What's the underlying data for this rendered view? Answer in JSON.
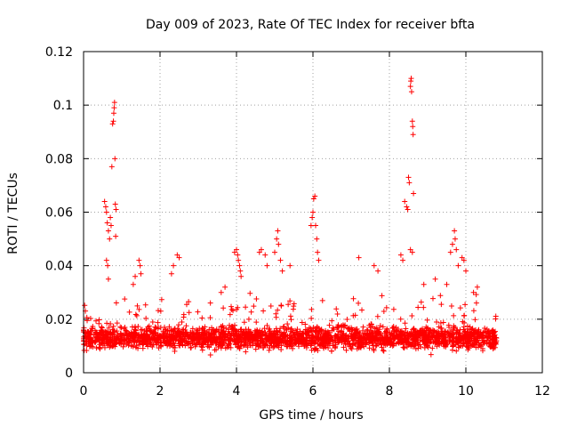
{
  "chart_data": {
    "type": "scatter",
    "title": "Day 009 of 2023, Rate Of TEC Index for receiver bfta",
    "xlabel": "GPS time / hours",
    "ylabel": "ROTI / TECUs",
    "xlim": [
      0,
      12
    ],
    "ylim": [
      0,
      0.12
    ],
    "xticks": [
      0,
      2,
      4,
      6,
      8,
      10,
      12
    ],
    "yticks": [
      0,
      0.02,
      0.04,
      0.06,
      0.08,
      0.1,
      0.12
    ],
    "xtick_labels": [
      "0",
      "2",
      "4",
      "6",
      "8",
      "10",
      "12"
    ],
    "ytick_labels": [
      "0",
      "0.02",
      "0.04",
      "0.06",
      "0.08",
      "0.1",
      "0.12"
    ],
    "grid": true,
    "marker": "+",
    "series_color": "#ff0000",
    "series": [
      {
        "name": "ROTI",
        "background": {
          "x_start": 0.0,
          "x_end": 10.8,
          "samples": 2600,
          "baseline": 0.013,
          "spread": 0.007,
          "floor": 0.004
        },
        "points": [
          {
            "x": 0.55,
            "y": 0.064
          },
          {
            "x": 0.58,
            "y": 0.062
          },
          {
            "x": 0.6,
            "y": 0.06
          },
          {
            "x": 0.62,
            "y": 0.056
          },
          {
            "x": 0.65,
            "y": 0.053
          },
          {
            "x": 0.68,
            "y": 0.05
          },
          {
            "x": 0.6,
            "y": 0.042
          },
          {
            "x": 0.63,
            "y": 0.04
          },
          {
            "x": 0.65,
            "y": 0.035
          },
          {
            "x": 0.7,
            "y": 0.058
          },
          {
            "x": 0.72,
            "y": 0.055
          },
          {
            "x": 0.74,
            "y": 0.077
          },
          {
            "x": 0.76,
            "y": 0.093
          },
          {
            "x": 0.78,
            "y": 0.094
          },
          {
            "x": 0.79,
            "y": 0.097
          },
          {
            "x": 0.8,
            "y": 0.099
          },
          {
            "x": 0.81,
            "y": 0.101
          },
          {
            "x": 0.82,
            "y": 0.08
          },
          {
            "x": 0.83,
            "y": 0.063
          },
          {
            "x": 0.85,
            "y": 0.061
          },
          {
            "x": 0.84,
            "y": 0.051
          },
          {
            "x": 1.3,
            "y": 0.033
          },
          {
            "x": 1.35,
            "y": 0.036
          },
          {
            "x": 1.45,
            "y": 0.042
          },
          {
            "x": 1.48,
            "y": 0.04
          },
          {
            "x": 1.5,
            "y": 0.037
          },
          {
            "x": 2.3,
            "y": 0.037
          },
          {
            "x": 2.35,
            "y": 0.04
          },
          {
            "x": 2.45,
            "y": 0.044
          },
          {
            "x": 2.5,
            "y": 0.043
          },
          {
            "x": 3.6,
            "y": 0.03
          },
          {
            "x": 3.7,
            "y": 0.032
          },
          {
            "x": 3.95,
            "y": 0.045
          },
          {
            "x": 4.0,
            "y": 0.046
          },
          {
            "x": 4.03,
            "y": 0.044
          },
          {
            "x": 4.05,
            "y": 0.042
          },
          {
            "x": 4.08,
            "y": 0.04
          },
          {
            "x": 4.1,
            "y": 0.038
          },
          {
            "x": 4.12,
            "y": 0.036
          },
          {
            "x": 4.6,
            "y": 0.045
          },
          {
            "x": 4.65,
            "y": 0.046
          },
          {
            "x": 4.75,
            "y": 0.044
          },
          {
            "x": 4.8,
            "y": 0.04
          },
          {
            "x": 5.0,
            "y": 0.045
          },
          {
            "x": 5.05,
            "y": 0.05
          },
          {
            "x": 5.08,
            "y": 0.053
          },
          {
            "x": 5.1,
            "y": 0.048
          },
          {
            "x": 5.15,
            "y": 0.042
          },
          {
            "x": 5.2,
            "y": 0.038
          },
          {
            "x": 5.4,
            "y": 0.04
          },
          {
            "x": 5.95,
            "y": 0.055
          },
          {
            "x": 5.98,
            "y": 0.058
          },
          {
            "x": 6.0,
            "y": 0.06
          },
          {
            "x": 6.02,
            "y": 0.065
          },
          {
            "x": 6.05,
            "y": 0.066
          },
          {
            "x": 6.07,
            "y": 0.055
          },
          {
            "x": 6.1,
            "y": 0.05
          },
          {
            "x": 6.12,
            "y": 0.045
          },
          {
            "x": 6.15,
            "y": 0.042
          },
          {
            "x": 7.2,
            "y": 0.043
          },
          {
            "x": 7.6,
            "y": 0.04
          },
          {
            "x": 7.7,
            "y": 0.038
          },
          {
            "x": 8.3,
            "y": 0.044
          },
          {
            "x": 8.35,
            "y": 0.042
          },
          {
            "x": 8.4,
            "y": 0.064
          },
          {
            "x": 8.45,
            "y": 0.062
          },
          {
            "x": 8.48,
            "y": 0.061
          },
          {
            "x": 8.5,
            "y": 0.073
          },
          {
            "x": 8.52,
            "y": 0.071
          },
          {
            "x": 8.55,
            "y": 0.107
          },
          {
            "x": 8.56,
            "y": 0.109
          },
          {
            "x": 8.57,
            "y": 0.11
          },
          {
            "x": 8.58,
            "y": 0.105
          },
          {
            "x": 8.6,
            "y": 0.094
          },
          {
            "x": 8.61,
            "y": 0.092
          },
          {
            "x": 8.62,
            "y": 0.089
          },
          {
            "x": 8.63,
            "y": 0.067
          },
          {
            "x": 8.55,
            "y": 0.046
          },
          {
            "x": 8.6,
            "y": 0.045
          },
          {
            "x": 8.9,
            "y": 0.033
          },
          {
            "x": 9.2,
            "y": 0.035
          },
          {
            "x": 9.6,
            "y": 0.045
          },
          {
            "x": 9.65,
            "y": 0.048
          },
          {
            "x": 9.7,
            "y": 0.053
          },
          {
            "x": 9.72,
            "y": 0.05
          },
          {
            "x": 9.75,
            "y": 0.046
          },
          {
            "x": 9.8,
            "y": 0.04
          },
          {
            "x": 9.9,
            "y": 0.043
          },
          {
            "x": 9.95,
            "y": 0.042
          },
          {
            "x": 10.0,
            "y": 0.038
          },
          {
            "x": 9.5,
            "y": 0.033
          },
          {
            "x": 10.2,
            "y": 0.03
          },
          {
            "x": 10.3,
            "y": 0.032
          }
        ]
      }
    ]
  }
}
